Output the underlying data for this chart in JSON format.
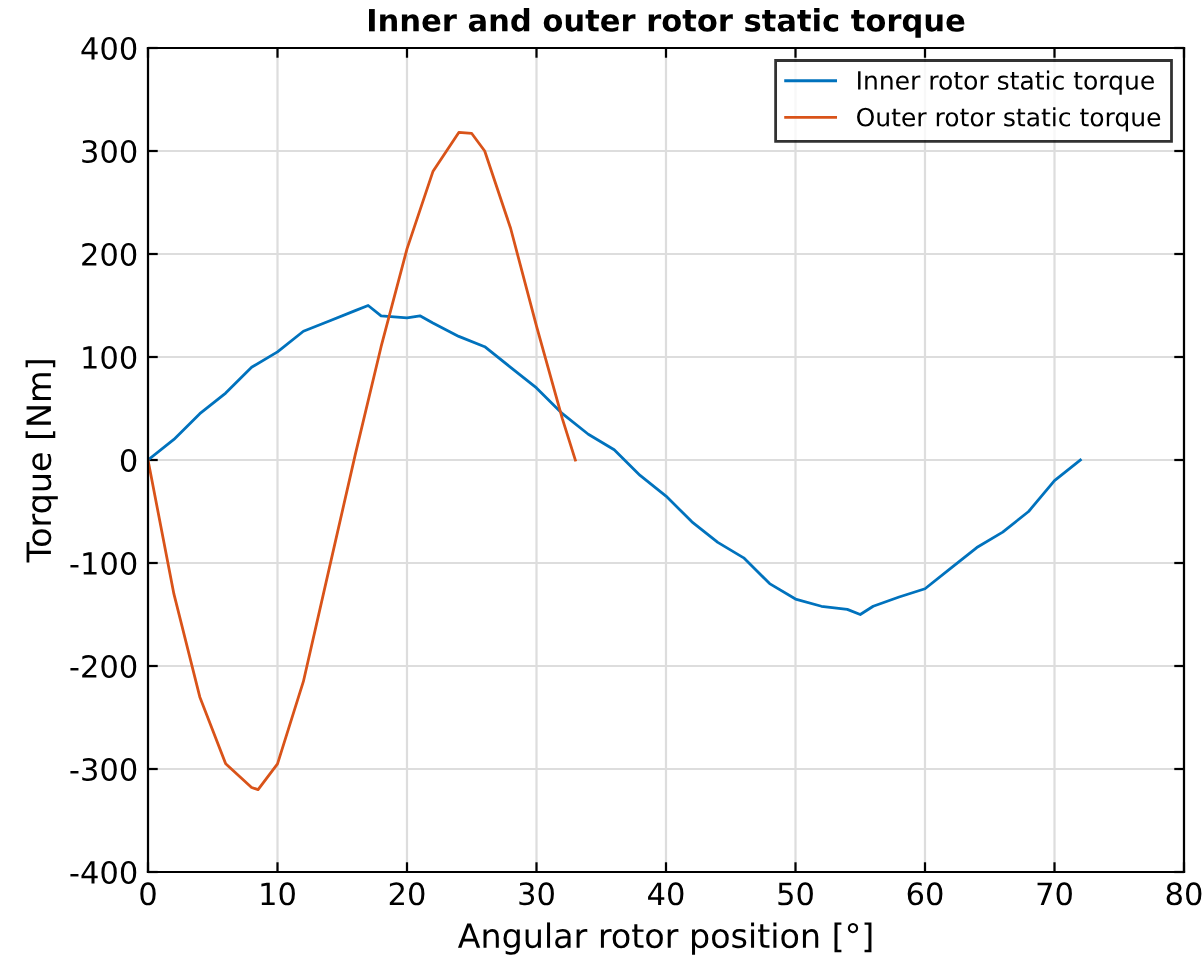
{
  "chart_data": {
    "type": "line",
    "title": "Inner and outer rotor static torque",
    "xlabel": "Angular rotor position [°]",
    "ylabel": "Torque [Nm]",
    "xlim": [
      0,
      80
    ],
    "ylim": [
      -400,
      400
    ],
    "xticks": [
      0,
      10,
      20,
      30,
      40,
      50,
      60,
      70,
      80
    ],
    "yticks": [
      -400,
      -300,
      -200,
      -100,
      0,
      100,
      200,
      300,
      400
    ],
    "grid": true,
    "legend": "top right",
    "series": [
      {
        "name": "Inner rotor static torque",
        "color": "#0072bd",
        "x": [
          0,
          2,
          4,
          6,
          8,
          10,
          12,
          14,
          16,
          17,
          18,
          20,
          21,
          22,
          24,
          26,
          28,
          30,
          32,
          34,
          36,
          38,
          40,
          42,
          44,
          46,
          48,
          50,
          52,
          54,
          55,
          56,
          58,
          60,
          62,
          64,
          66,
          68,
          70,
          72
        ],
        "values": [
          0,
          20,
          45,
          65,
          90,
          105,
          125,
          135,
          145,
          150,
          140,
          138,
          140,
          133,
          120,
          110,
          90,
          70,
          45,
          25,
          10,
          -15,
          -35,
          -60,
          -80,
          -95,
          -120,
          -135,
          -142,
          -145,
          -150,
          -142,
          -133,
          -125,
          -105,
          -85,
          -70,
          -50,
          -20,
          0
        ]
      },
      {
        "name": "Outer rotor static torque",
        "color": "#d95319",
        "x": [
          0,
          2,
          4,
          6,
          8,
          8.5,
          10,
          12,
          14,
          16,
          18,
          20,
          22,
          24,
          25,
          26,
          28,
          30,
          32,
          33
        ],
        "values": [
          0,
          -130,
          -230,
          -295,
          -318,
          -320,
          -295,
          -215,
          -105,
          5,
          110,
          205,
          280,
          318,
          317,
          300,
          225,
          130,
          40,
          0
        ]
      }
    ]
  }
}
